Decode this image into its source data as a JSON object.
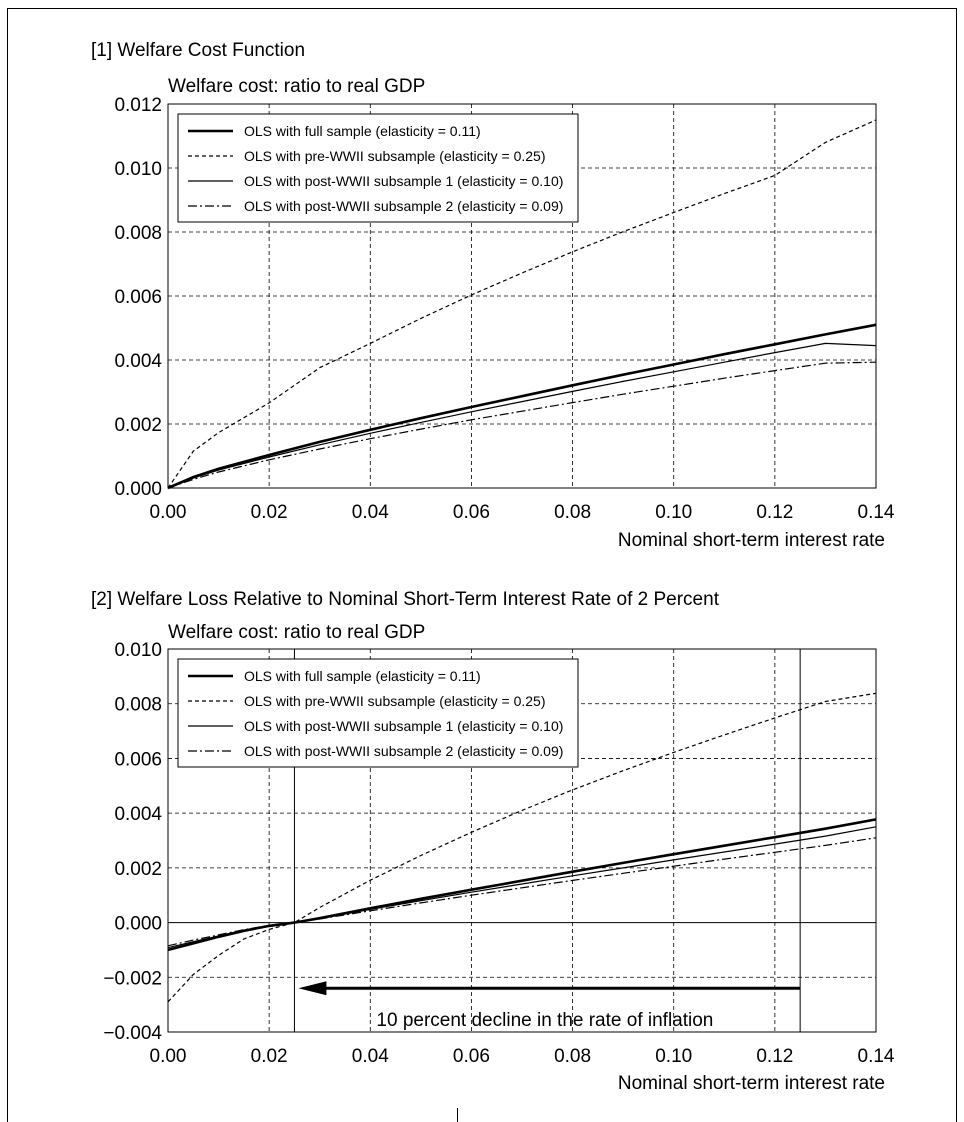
{
  "chart_data": [
    {
      "type": "line",
      "title": "[1] Welfare Cost Function",
      "ylabel": "Welfare cost: ratio to real GDP",
      "xlabel": "Nominal short-term interest rate",
      "xlim": [
        0,
        0.14
      ],
      "ylim": [
        0,
        0.012
      ],
      "x_ticks": [
        "0.00",
        "0.02",
        "0.04",
        "0.06",
        "0.08",
        "0.10",
        "0.12",
        "0.14"
      ],
      "y_ticks": [
        "0.000",
        "0.002",
        "0.004",
        "0.006",
        "0.008",
        "0.010",
        "0.012"
      ],
      "grid": true,
      "legend": "top-left",
      "x": [
        0,
        0.005,
        0.01,
        0.02,
        0.03,
        0.04,
        0.05,
        0.06,
        0.07,
        0.08,
        0.09,
        0.1,
        0.11,
        0.12,
        0.13,
        0.14
      ],
      "series": [
        {
          "name": "OLS with full sample (elasticity = 0.11)",
          "style": "thick",
          "values": [
            0.0,
            0.00034,
            0.0006,
            0.00103,
            0.00144,
            0.00182,
            0.00218,
            0.00253,
            0.00287,
            0.00321,
            0.00354,
            0.00386,
            0.00418,
            0.00449,
            0.0048,
            0.0051
          ]
        },
        {
          "name": "OLS with pre-WWII subsample (elasticity = 0.25)",
          "style": "dashed",
          "values": [
            0.0,
            0.00115,
            0.00173,
            0.00266,
            0.00376,
            0.00452,
            0.0053,
            0.00603,
            0.00672,
            0.00738,
            0.00801,
            0.00861,
            0.0092,
            0.00977,
            0.0108,
            0.0115
          ]
        },
        {
          "name": "OLS with post-WWII subsample 1 (elasticity = 0.10)",
          "style": "thin",
          "values": [
            0.0,
            0.00031,
            0.00056,
            0.00097,
            0.00135,
            0.00171,
            0.00205,
            0.00238,
            0.0027,
            0.00302,
            0.00333,
            0.00363,
            0.00393,
            0.00423,
            0.00452,
            0.00445
          ]
        },
        {
          "name": "OLS with post-WWII subsample 2 (elasticity = 0.09)",
          "style": "dashdot",
          "values": [
            0.0,
            0.00027,
            0.0005,
            0.00088,
            0.00122,
            0.00154,
            0.00184,
            0.00213,
            0.0024,
            0.00267,
            0.00293,
            0.00318,
            0.00343,
            0.00367,
            0.0039,
            0.00393
          ]
        }
      ]
    },
    {
      "type": "line",
      "title": "[2] Welfare Loss Relative to Nominal Short-Term Interest Rate of 2 Percent",
      "ylabel": "Welfare cost: ratio to real GDP",
      "xlabel": "Nominal short-term interest rate",
      "xlim": [
        0,
        0.14
      ],
      "ylim": [
        -0.004,
        0.01
      ],
      "x_ticks": [
        "0.00",
        "0.02",
        "0.04",
        "0.06",
        "0.08",
        "0.10",
        "0.12",
        "0.14"
      ],
      "y_ticks": [
        "−0.004",
        "−0.002",
        "0.000",
        "0.002",
        "0.004",
        "0.006",
        "0.008",
        "0.010"
      ],
      "grid": true,
      "legend": "top-left",
      "annotation": "10 percent decline in the rate of inflation",
      "vlines": [
        0.025,
        0.125
      ],
      "arrow": {
        "from": 0.125,
        "to": 0.025,
        "y": -0.0024
      },
      "x": [
        0,
        0.005,
        0.01,
        0.015,
        0.02,
        0.025,
        0.03,
        0.04,
        0.05,
        0.06,
        0.07,
        0.08,
        0.09,
        0.1,
        0.11,
        0.12,
        0.13,
        0.14
      ],
      "series": [
        {
          "name": "OLS with full sample (elasticity = 0.11)",
          "style": "thick",
          "values": [
            -0.001,
            -0.00076,
            -0.00052,
            -0.0003,
            -0.00012,
            0.0,
            0.00016,
            0.00052,
            0.00087,
            0.0012,
            0.00153,
            0.00186,
            0.00218,
            0.0025,
            0.00281,
            0.00312,
            0.00343,
            0.00377
          ]
        },
        {
          "name": "OLS with pre-WWII subsample (elasticity = 0.25)",
          "style": "dashed",
          "values": [
            -0.0029,
            -0.0019,
            -0.0012,
            -0.0006,
            -0.00025,
            0.0,
            0.00055,
            0.00155,
            0.00245,
            0.0033,
            0.0041,
            0.00485,
            0.00555,
            0.00622,
            0.00686,
            0.00748,
            0.00808,
            0.00838
          ]
        },
        {
          "name": "OLS with post-WWII subsample 1 (elasticity = 0.10)",
          "style": "thin",
          "values": [
            -0.00092,
            -0.0007,
            -0.00049,
            -0.00028,
            -0.00011,
            0.0,
            0.00015,
            0.00048,
            0.0008,
            0.00111,
            0.00141,
            0.00171,
            0.002,
            0.00229,
            0.00258,
            0.00287,
            0.00316,
            0.0035
          ]
        },
        {
          "name": "OLS with post-WWII subsample 2 (elasticity = 0.09)",
          "style": "dashdot",
          "values": [
            -0.00085,
            -0.00064,
            -0.00045,
            -0.00026,
            -0.0001,
            0.0,
            0.00013,
            0.00043,
            0.00072,
            0.001,
            0.00127,
            0.00154,
            0.0018,
            0.00206,
            0.00232,
            0.00257,
            0.00282,
            0.0031
          ]
        }
      ]
    }
  ]
}
